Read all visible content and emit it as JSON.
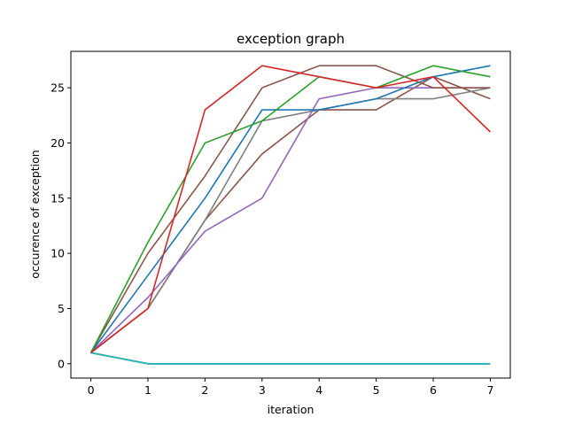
{
  "chart_data": {
    "type": "line",
    "title": "exception graph",
    "xlabel": "iteration",
    "ylabel": "occurence of exception",
    "xlim": [
      -0.35,
      7.35
    ],
    "ylim": [
      -1.3,
      28.3
    ],
    "x_ticks": [
      0,
      1,
      2,
      3,
      4,
      5,
      6,
      7
    ],
    "y_ticks": [
      0,
      5,
      10,
      15,
      20,
      25
    ],
    "grid": false,
    "x": [
      0,
      1,
      2,
      3,
      4,
      5,
      6,
      7
    ],
    "series": [
      {
        "color": "#1f77b4",
        "values": [
          1,
          0,
          0,
          0,
          0,
          0,
          0,
          0
        ]
      },
      {
        "color": "#ff7f0e",
        "values": [
          1,
          0,
          0,
          0,
          0,
          0,
          0,
          0
        ]
      },
      {
        "color": "#2ca02c",
        "values": [
          1,
          0,
          0,
          0,
          0,
          0,
          0,
          0
        ]
      },
      {
        "color": "#d62728",
        "values": [
          1,
          0,
          0,
          0,
          0,
          0,
          0,
          0
        ]
      },
      {
        "color": "#9467bd",
        "values": [
          1,
          0,
          0,
          0,
          0,
          0,
          0,
          0
        ]
      },
      {
        "color": "#8c564b",
        "values": [
          1,
          0,
          0,
          0,
          0,
          0,
          0,
          0
        ]
      },
      {
        "color": "#e377c2",
        "values": [
          1,
          0,
          0,
          0,
          0,
          0,
          0,
          0
        ]
      },
      {
        "color": "#7f7f7f",
        "values": [
          1,
          0,
          0,
          0,
          0,
          0,
          0,
          0
        ]
      },
      {
        "color": "#bcbd22",
        "values": [
          1,
          0,
          0,
          0,
          0,
          0,
          0,
          0
        ]
      },
      {
        "color": "#17becf",
        "values": [
          1,
          0,
          0,
          0,
          0,
          0,
          0,
          0
        ]
      },
      {
        "color": "#1f77b4",
        "values": [
          1,
          0,
          0,
          0,
          0,
          0,
          0,
          0
        ]
      },
      {
        "color": "#ff7f0e",
        "values": [
          1,
          0,
          0,
          0,
          0,
          0,
          0,
          0
        ]
      },
      {
        "color": "#2ca02c",
        "values": [
          1,
          0,
          0,
          0,
          0,
          0,
          0,
          0
        ]
      },
      {
        "color": "#d62728",
        "values": [
          1,
          0,
          0,
          0,
          0,
          0,
          0,
          0
        ]
      },
      {
        "color": "#9467bd",
        "values": [
          1,
          0,
          0,
          0,
          0,
          0,
          0,
          0
        ]
      },
      {
        "color": "#8c564b",
        "values": [
          1,
          0,
          0,
          0,
          0,
          0,
          0,
          0
        ]
      },
      {
        "color": "#e377c2",
        "values": [
          1,
          0,
          0,
          0,
          0,
          0,
          0,
          0
        ]
      },
      {
        "color": "#7f7f7f",
        "values": [
          1,
          0,
          0,
          0,
          0,
          0,
          0,
          0
        ]
      },
      {
        "color": "#bcbd22",
        "values": [
          1,
          0,
          0,
          0,
          0,
          0,
          0,
          0
        ]
      },
      {
        "color": "#17becf",
        "values": [
          1,
          0,
          0,
          0,
          0,
          0,
          0,
          0
        ]
      },
      {
        "color": "#8c564b",
        "values": [
          1,
          5,
          13,
          19,
          23,
          23,
          26,
          24
        ]
      },
      {
        "color": "#7f7f7f",
        "values": [
          1,
          5,
          13,
          22,
          23,
          24,
          24,
          25
        ]
      },
      {
        "color": "#9467bd",
        "values": [
          1,
          6,
          12,
          15,
          24,
          25,
          25,
          25
        ]
      },
      {
        "color": "#1f77b4",
        "values": [
          1,
          8,
          15,
          23,
          23,
          24,
          26,
          27
        ]
      },
      {
        "color": "#8c564b",
        "values": [
          1,
          10,
          17,
          25,
          27,
          27,
          25,
          25
        ]
      },
      {
        "color": "#2ca02c",
        "values": [
          1,
          11,
          20,
          22,
          26,
          25,
          27,
          26
        ]
      },
      {
        "color": "#d62728",
        "values": [
          1,
          5,
          23,
          27,
          26,
          25,
          26,
          21
        ]
      }
    ]
  }
}
